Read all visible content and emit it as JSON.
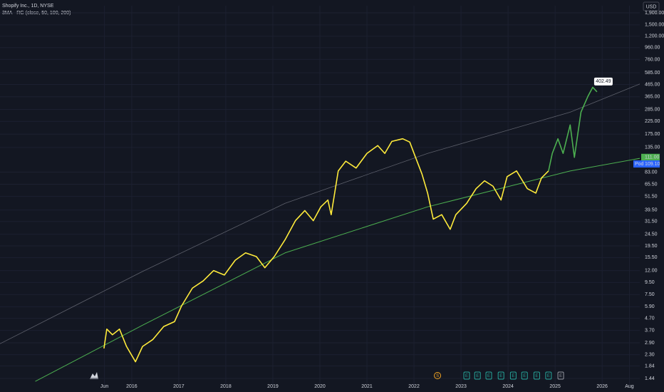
{
  "chart_data": {
    "type": "line",
    "title": "Shopify Inc., 1D, NYSE",
    "subtitle": "3MA - RG (close, 50, 100, 200)",
    "currency": "USD",
    "log_scale": true,
    "grid": true,
    "xlim": [
      2013.2,
      2026.8
    ],
    "ylim": [
      1.27,
      2186
    ],
    "xticks": [
      {
        "value": 2015.42,
        "label": "Jun"
      },
      {
        "value": 2016,
        "label": "2016"
      },
      {
        "value": 2017,
        "label": "2017"
      },
      {
        "value": 2018,
        "label": "2018"
      },
      {
        "value": 2019,
        "label": "2019"
      },
      {
        "value": 2020,
        "label": "2020"
      },
      {
        "value": 2021,
        "label": "2021"
      },
      {
        "value": 2022,
        "label": "2022"
      },
      {
        "value": 2023,
        "label": "2023"
      },
      {
        "value": 2024,
        "label": "2024"
      },
      {
        "value": 2025,
        "label": "2025"
      },
      {
        "value": 2026,
        "label": "2026"
      },
      {
        "value": 2026.58,
        "label": "Aug"
      }
    ],
    "yticks": [
      1.44,
      1.84,
      {
        "value": 2.3,
        "label": "2.30"
      },
      {
        "value": 2.9,
        "label": "2.90"
      },
      {
        "value": 3.7,
        "label": "3.70"
      },
      {
        "value": 4.7,
        "label": "4.70"
      },
      {
        "value": 5.9,
        "label": "5.90"
      },
      {
        "value": 7.5,
        "label": "7.50"
      },
      {
        "value": 9.5,
        "label": "9.50"
      },
      {
        "value": 12,
        "label": "12.00"
      },
      {
        "value": 15.5,
        "label": "15.50"
      },
      {
        "value": 19.5,
        "label": "19.50"
      },
      {
        "value": 24.5,
        "label": "24.50"
      },
      {
        "value": 31.5,
        "label": "31.50"
      },
      {
        "value": 39.5,
        "label": "39.50"
      },
      {
        "value": 51.5,
        "label": "51.50"
      },
      {
        "value": 65.5,
        "label": "65.50"
      },
      {
        "value": 83,
        "label": "83.00"
      },
      {
        "value": 135,
        "label": "135.00"
      },
      {
        "value": 175,
        "label": "175.00"
      },
      {
        "value": 225,
        "label": "225.00"
      },
      {
        "value": 285,
        "label": "285.00"
      },
      {
        "value": 365,
        "label": "365.00"
      },
      {
        "value": 465,
        "label": "465.00"
      },
      {
        "value": 585,
        "label": "585.00"
      },
      {
        "value": 760,
        "label": "760.00"
      },
      {
        "value": 960,
        "label": "960.00"
      },
      {
        "value": 1200,
        "label": "1,200.00"
      },
      {
        "value": 1500,
        "label": "1,500.00"
      },
      {
        "value": 1900,
        "label": "1,900.00"
      }
    ],
    "series": [
      {
        "color": "#5d606b",
        "width": 0.8,
        "x": [
          2013.2,
          2016.23,
          2019.26,
          2022.29,
          2025.32,
          2026.97
        ],
        "values": [
          2.85,
          11.8,
          45,
          120,
          270,
          500
        ]
      },
      {
        "color": "#4caf50",
        "width": 1,
        "x": [
          2013.95,
          2016.23,
          2019.26,
          2022.29,
          2025.32,
          2026.97
        ],
        "values": [
          1.36,
          4.1,
          17,
          42,
          85,
          112
        ]
      },
      {
        "color": "#ffeb3b",
        "width": 1.6,
        "x": [
          2015.41,
          2015.47,
          2015.59,
          2015.74,
          2015.89,
          2016.08,
          2016.23,
          2016.45,
          2016.68,
          2016.91,
          2017.06,
          2017.29,
          2017.52,
          2017.74,
          2017.97,
          2018.2,
          2018.42,
          2018.65,
          2018.83,
          2019.03,
          2019.26,
          2019.48,
          2019.68,
          2019.86,
          2020.02,
          2020.17,
          2020.24,
          2020.39,
          2020.55,
          2020.77,
          2021.0,
          2021.23,
          2021.38,
          2021.53,
          2021.76,
          2021.91,
          2022.03,
          2022.17,
          2022.29,
          2022.41,
          2022.59,
          2022.77,
          2022.89,
          2023.12,
          2023.32,
          2023.5,
          2023.68,
          2023.85,
          2023.98,
          2024.18,
          2024.41,
          2024.59,
          2024.71,
          2024.86
        ],
        "values": [
          2.6,
          3.8,
          3.4,
          3.8,
          2.7,
          2.0,
          2.7,
          3.1,
          4.0,
          4.4,
          6.0,
          8.5,
          9.8,
          12,
          11,
          14.7,
          17,
          15.8,
          12.7,
          15.8,
          22,
          32,
          39,
          32,
          42,
          48,
          36,
          85,
          103,
          90,
          120,
          140,
          120,
          152,
          160,
          150,
          112,
          80,
          55,
          33,
          36,
          27,
          36,
          45,
          60,
          70,
          63,
          48,
          76,
          85,
          60,
          55,
          74,
          85
        ]
      },
      {
        "color": "#4caf50",
        "width": 1.6,
        "x": [
          2024.86,
          2024.94,
          2025.06,
          2025.17,
          2025.32,
          2025.41,
          2025.55,
          2025.7,
          2025.8,
          2025.89
        ],
        "values": [
          85,
          120,
          160,
          120,
          210,
          111,
          270,
          370,
          440,
          402.49
        ]
      }
    ],
    "last_price": {
      "value": 402.49,
      "label": "402.49"
    },
    "price_tags": [
      {
        "value": 111,
        "label": "111.00",
        "color": "#4caf50"
      },
      {
        "value": 109.1,
        "label": "109.10",
        "prefix": "Pod",
        "color": "#2962ff"
      }
    ],
    "events": [
      {
        "x": 2022.5,
        "label": "S",
        "color": "#f5a623"
      },
      {
        "x": 2023.12,
        "label": "E",
        "color": "#26a69a"
      },
      {
        "x": 2023.35,
        "label": "E",
        "color": "#26a69a"
      },
      {
        "x": 2023.59,
        "label": "E",
        "color": "#26a69a"
      },
      {
        "x": 2023.85,
        "label": "E",
        "color": "#26a69a"
      },
      {
        "x": 2024.11,
        "label": "E",
        "color": "#26a69a"
      },
      {
        "x": 2024.35,
        "label": "E",
        "color": "#26a69a"
      },
      {
        "x": 2024.61,
        "label": "E",
        "color": "#26a69a"
      },
      {
        "x": 2024.86,
        "label": "E",
        "color": "#26a69a"
      },
      {
        "x": 2025.12,
        "label": "E",
        "color": "#9598a1"
      }
    ]
  }
}
